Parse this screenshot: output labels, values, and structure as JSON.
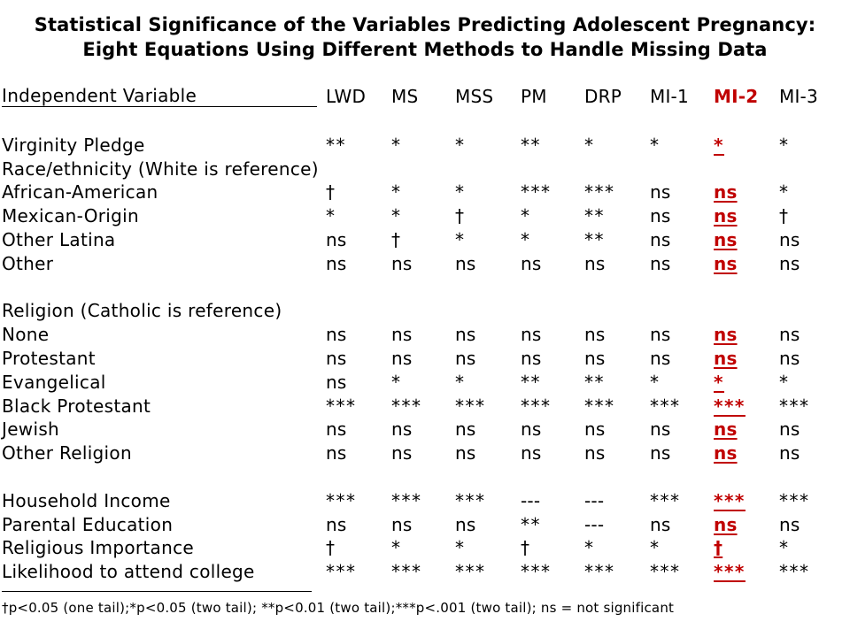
{
  "title": {
    "line1": "Statistical Significance of the Variables Predicting Adolescent Pregnancy:",
    "line2": "Eight Equations Using Different Methods to Handle Missing Data"
  },
  "table": {
    "header": {
      "variable": "Independent Variable",
      "methods": [
        "LWD",
        "MS",
        "MSS",
        "PM",
        "DRP",
        "MI-1",
        "MI-2",
        "MI-3"
      ]
    },
    "highlight_color": "#c00000",
    "rows": [
      {
        "label": "",
        "values": []
      },
      {
        "label": "Virginity Pledge",
        "values": [
          "**",
          "*",
          "*",
          "**",
          "*",
          "*",
          "*",
          "*"
        ]
      },
      {
        "label": "Race/ethnicity (White is reference)",
        "values": []
      },
      {
        "label": "African-American",
        "values": [
          "†",
          "*",
          "*",
          "***",
          "***",
          "ns",
          "ns",
          "*"
        ]
      },
      {
        "label": "Mexican-Origin",
        "values": [
          "*",
          "*",
          "†",
          "*",
          "**",
          "ns",
          "ns",
          "†"
        ]
      },
      {
        "label": "Other Latina",
        "values": [
          "ns",
          "†",
          "*",
          "*",
          "**",
          "ns",
          "ns",
          "ns"
        ]
      },
      {
        "label": "Other",
        "values": [
          "ns",
          "ns",
          "ns",
          "ns",
          "ns",
          "ns",
          "ns",
          "ns"
        ]
      },
      {
        "label": "",
        "values": []
      },
      {
        "label": "Religion (Catholic is reference)",
        "values": []
      },
      {
        "label": "None",
        "values": [
          "ns",
          "ns",
          "ns",
          "ns",
          "ns",
          "ns",
          "ns",
          "ns"
        ]
      },
      {
        "label": "Protestant",
        "values": [
          "ns",
          "ns",
          "ns",
          "ns",
          "ns",
          "ns",
          "ns",
          "ns"
        ]
      },
      {
        "label": "Evangelical",
        "values": [
          "ns",
          "*",
          "*",
          "**",
          "**",
          "*",
          "*",
          "*"
        ]
      },
      {
        "label": "Black Protestant",
        "values": [
          "***",
          "***",
          "***",
          "***",
          "***",
          "***",
          "***",
          "***"
        ]
      },
      {
        "label": "Jewish",
        "values": [
          "ns",
          "ns",
          "ns",
          "ns",
          "ns",
          "ns",
          "ns",
          "ns"
        ]
      },
      {
        "label": "Other Religion",
        "values": [
          "ns",
          "ns",
          "ns",
          "ns",
          "ns",
          "ns",
          "ns",
          "ns"
        ]
      },
      {
        "label": "",
        "values": []
      },
      {
        "label": "Household Income",
        "values": [
          "***",
          "***",
          "***",
          "---",
          "---",
          "***",
          "***",
          "***"
        ]
      },
      {
        "label": "Parental Education",
        "values": [
          "ns",
          "ns",
          "ns",
          "**",
          "---",
          "ns",
          "ns",
          "ns"
        ]
      },
      {
        "label": "Religious Importance",
        "values": [
          "†",
          "*",
          "*",
          "†",
          "*",
          "*",
          "†",
          "*"
        ]
      },
      {
        "label": "Likelihood to attend college",
        "values": [
          "***",
          "***",
          "***",
          "***",
          "***",
          "***",
          "***",
          "***"
        ]
      }
    ]
  },
  "footnote": "†p<0.05 (one tail);*p<0.05 (two tail); **p<0.01 (two tail);***p<.001 (two tail); ns = not significant"
}
